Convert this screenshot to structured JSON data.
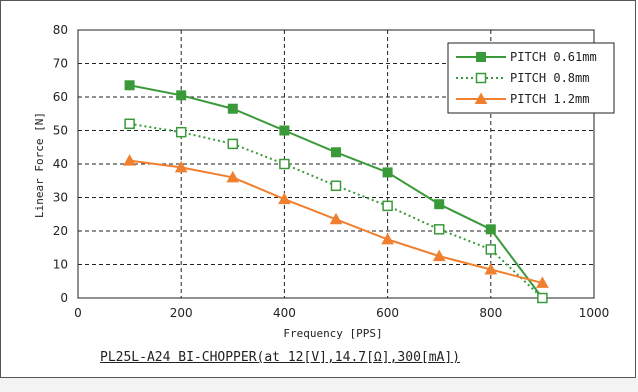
{
  "caption": "PL25L-A24 BI-CHOPPER(at 12[V],14.7[Ω],300[mA])",
  "chart_data": {
    "type": "line",
    "xlabel": "Frequency [PPS]",
    "ylabel": "Linear Force [N]",
    "xlim": [
      0,
      1000
    ],
    "ylim": [
      0,
      80
    ],
    "xticks": [
      0,
      200,
      400,
      600,
      800,
      1000
    ],
    "yticks": [
      0,
      10,
      20,
      30,
      40,
      50,
      60,
      70,
      80
    ],
    "grid": true,
    "legend_position": "top-right",
    "series": [
      {
        "name": "PITCH 0.61mm",
        "color": "#3a9a3a",
        "line": "solid",
        "marker": "filled-square",
        "x": [
          100,
          200,
          300,
          400,
          500,
          600,
          700,
          800,
          900
        ],
        "y": [
          63.5,
          60.5,
          56.5,
          50,
          43.5,
          37.5,
          28,
          20.5,
          0
        ]
      },
      {
        "name": "PITCH 0.8mm",
        "color": "#3a9a3a",
        "line": "dotted",
        "marker": "hollow-square",
        "x": [
          100,
          200,
          300,
          400,
          500,
          600,
          700,
          800,
          900
        ],
        "y": [
          52,
          49.5,
          46,
          40,
          33.5,
          27.5,
          20.5,
          14.5,
          0
        ]
      },
      {
        "name": "PITCH 1.2mm",
        "color": "#f08030",
        "line": "solid",
        "marker": "triangle",
        "x": [
          100,
          200,
          300,
          400,
          500,
          600,
          700,
          800,
          900
        ],
        "y": [
          41,
          39,
          36,
          29.5,
          23.5,
          17.5,
          12.5,
          8.5,
          4.5
        ]
      }
    ]
  }
}
